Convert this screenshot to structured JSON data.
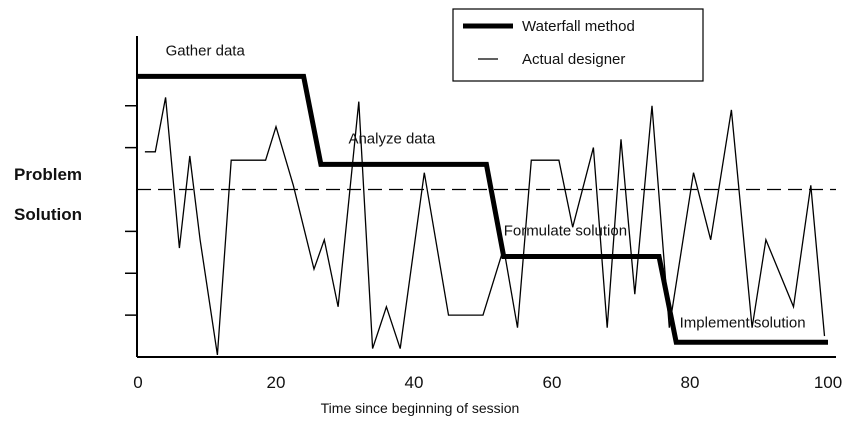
{
  "chart_data": {
    "type": "line",
    "xlabel": "Time since beginning of session",
    "ylabel": "",
    "xlim": [
      0,
      100
    ],
    "ylim": [
      0,
      8
    ],
    "x_ticks": [
      0,
      20,
      40,
      60,
      80,
      100
    ],
    "y_tick_levels": [
      1,
      2,
      3,
      5,
      6
    ],
    "divider_level": 4,
    "region_labels": {
      "above": "Problem",
      "below": "Solution"
    },
    "phase_labels": [
      {
        "text": "Gather data",
        "x": 4,
        "y": 7.2
      },
      {
        "text": "Analyze data",
        "x": 30.5,
        "y": 5.1
      },
      {
        "text": "Formulate solution",
        "x": 53,
        "y": 2.9
      },
      {
        "text": "Implement solution",
        "x": 78.5,
        "y": 0.7
      }
    ],
    "series": [
      {
        "name": "Waterfall method",
        "style": "thick",
        "color": "#000000",
        "points": [
          [
            0,
            6.7
          ],
          [
            24,
            6.7
          ],
          [
            26.5,
            4.6
          ],
          [
            50.5,
            4.6
          ],
          [
            53,
            2.4
          ],
          [
            75.5,
            2.4
          ],
          [
            78,
            0.35
          ],
          [
            100,
            0.35
          ]
        ]
      },
      {
        "name": "Actual designer",
        "style": "thin",
        "color": "#000000",
        "points": [
          [
            1,
            4.9
          ],
          [
            2.5,
            4.9
          ],
          [
            4,
            6.2
          ],
          [
            6,
            2.6
          ],
          [
            7.5,
            4.8
          ],
          [
            9,
            2.8
          ],
          [
            11.5,
            0.05
          ],
          [
            13.5,
            4.7
          ],
          [
            18.5,
            4.7
          ],
          [
            20,
            5.5
          ],
          [
            22.5,
            4.1
          ],
          [
            25.5,
            2.1
          ],
          [
            27,
            2.8
          ],
          [
            29,
            1.2
          ],
          [
            32,
            6.1
          ],
          [
            34,
            0.2
          ],
          [
            36,
            1.2
          ],
          [
            38,
            0.2
          ],
          [
            41.5,
            4.4
          ],
          [
            45,
            1.0
          ],
          [
            50,
            1.0
          ],
          [
            53,
            2.6
          ],
          [
            55,
            0.7
          ],
          [
            57,
            4.7
          ],
          [
            61,
            4.7
          ],
          [
            63,
            3.1
          ],
          [
            66,
            5.0
          ],
          [
            68,
            0.7
          ],
          [
            70,
            5.2
          ],
          [
            72,
            1.5
          ],
          [
            74.5,
            6.0
          ],
          [
            77,
            0.7
          ],
          [
            80.5,
            4.4
          ],
          [
            83,
            2.8
          ],
          [
            86,
            5.9
          ],
          [
            89,
            0.7
          ],
          [
            91,
            2.8
          ],
          [
            95,
            1.2
          ],
          [
            97.5,
            4.1
          ],
          [
            99.5,
            0.5
          ]
        ]
      }
    ],
    "legend": {
      "position": "top-right",
      "entries": [
        "Waterfall method",
        "Actual designer"
      ]
    },
    "grid": false
  }
}
